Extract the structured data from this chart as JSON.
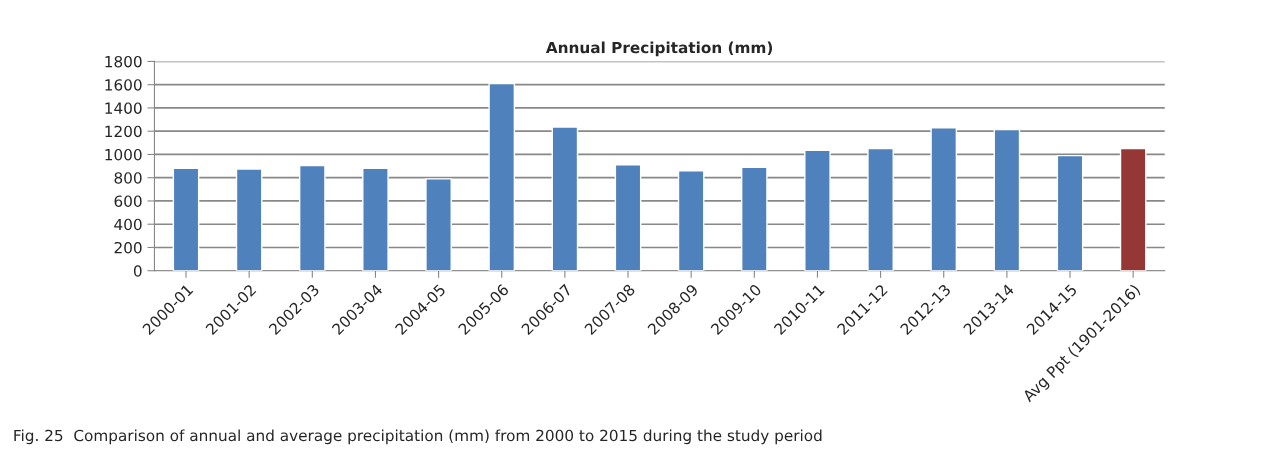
{
  "chart_data": {
    "type": "bar",
    "title": "Annual Precipitation (mm)",
    "categories": [
      "2000-01",
      "2001-02",
      "2002-03",
      "2003-04",
      "2004-05",
      "2005-06",
      "2006-07",
      "2007-08",
      "2008-09",
      "2009-10",
      "2010-11",
      "2011-12",
      "2012-13",
      "2013-14",
      "2014-15",
      "Avg Ppt (1901-2016)"
    ],
    "values": [
      880,
      875,
      905,
      880,
      790,
      1610,
      1235,
      910,
      860,
      890,
      1035,
      1050,
      1230,
      1215,
      990,
      1050
    ],
    "colors": [
      "#4f81bd",
      "#4f81bd",
      "#4f81bd",
      "#4f81bd",
      "#4f81bd",
      "#4f81bd",
      "#4f81bd",
      "#4f81bd",
      "#4f81bd",
      "#4f81bd",
      "#4f81bd",
      "#4f81bd",
      "#4f81bd",
      "#4f81bd",
      "#4f81bd",
      "#953735"
    ],
    "ylim": [
      0,
      1800
    ],
    "yticks": [
      0,
      200,
      400,
      600,
      800,
      1000,
      1200,
      1400,
      1600,
      1800
    ],
    "grid": "y",
    "annotations": [
      "Fig. 25  Comparison of annual and average precipitation (mm) from 2000 to 2015 during the study period"
    ]
  }
}
